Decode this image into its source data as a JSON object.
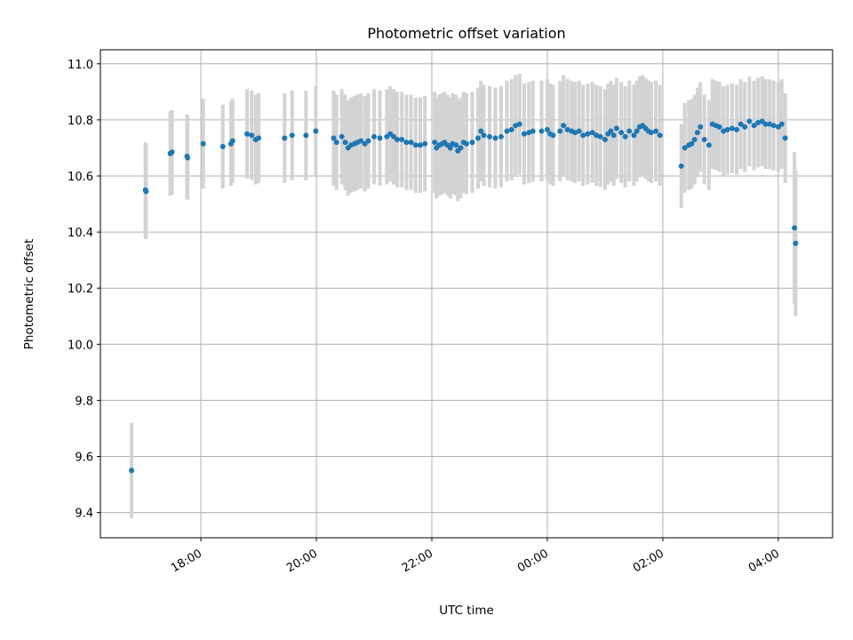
{
  "chart_data": {
    "type": "scatter",
    "title": "Photometric offset variation",
    "xlabel": "UTC time",
    "ylabel": "Photometric offset",
    "xlim_hours": [
      16.26,
      28.94
    ],
    "ylim": [
      9.31,
      11.05
    ],
    "grid": true,
    "x_tick_values_hours": [
      18,
      20,
      22,
      24,
      26,
      28
    ],
    "x_tick_labels": [
      "18:00",
      "20:00",
      "22:00",
      "00:00",
      "02:00",
      "04:00"
    ],
    "y_tick_values": [
      9.4,
      9.6,
      9.8,
      10.0,
      10.2,
      10.4,
      10.6,
      10.8,
      11.0
    ],
    "y_tick_labels": [
      "9.4",
      "9.6",
      "9.8",
      "10.0",
      "10.2",
      "10.4",
      "10.6",
      "10.8",
      "11.0"
    ],
    "colors": {
      "points": "#1f77b4",
      "errorbars": "#d3d3d3",
      "grid": "#b0b0b0"
    },
    "series": [
      {
        "name": "photometric offset",
        "x_hours": [
          16.8,
          17.04,
          17.05,
          17.47,
          17.5,
          17.76,
          17.77,
          18.04,
          18.38,
          18.52,
          18.55,
          18.8,
          18.88,
          18.95,
          19.0,
          19.45,
          19.58,
          19.82,
          19.99,
          20.3,
          20.35,
          20.44,
          20.5,
          20.55,
          20.6,
          20.66,
          20.71,
          20.77,
          20.84,
          20.9,
          21.0,
          21.1,
          21.22,
          21.28,
          21.34,
          21.4,
          21.48,
          21.56,
          21.64,
          21.72,
          21.8,
          21.88,
          22.05,
          22.08,
          22.13,
          22.18,
          22.22,
          22.27,
          22.32,
          22.36,
          22.42,
          22.45,
          22.5,
          22.55,
          22.6,
          22.7,
          22.8,
          22.85,
          22.9,
          23.0,
          23.1,
          23.2,
          23.3,
          23.38,
          23.45,
          23.52,
          23.6,
          23.68,
          23.75,
          23.9,
          24.0,
          24.05,
          24.1,
          24.22,
          24.28,
          24.35,
          24.42,
          24.48,
          24.55,
          24.62,
          24.7,
          24.78,
          24.85,
          24.92,
          25.0,
          25.05,
          25.1,
          25.15,
          25.2,
          25.28,
          25.35,
          25.42,
          25.5,
          25.55,
          25.6,
          25.65,
          25.7,
          25.75,
          25.8,
          25.88,
          25.95,
          26.32,
          26.38,
          26.45,
          26.5,
          26.55,
          26.6,
          26.65,
          26.72,
          26.8,
          26.86,
          26.92,
          26.98,
          27.05,
          27.12,
          27.2,
          27.28,
          27.35,
          27.42,
          27.5,
          27.58,
          27.65,
          27.72,
          27.78,
          27.85,
          27.92,
          28.0,
          28.06,
          28.12,
          28.28,
          28.3
        ],
        "y": [
          9.55,
          10.55,
          10.545,
          10.68,
          10.685,
          10.67,
          10.665,
          10.715,
          10.705,
          10.715,
          10.725,
          10.75,
          10.745,
          10.73,
          10.735,
          10.735,
          10.745,
          10.745,
          10.76,
          10.735,
          10.72,
          10.74,
          10.72,
          10.7,
          10.71,
          10.715,
          10.72,
          10.725,
          10.715,
          10.725,
          10.74,
          10.735,
          10.74,
          10.75,
          10.74,
          10.73,
          10.73,
          10.72,
          10.72,
          10.71,
          10.71,
          10.715,
          10.72,
          10.7,
          10.71,
          10.715,
          10.72,
          10.71,
          10.7,
          10.715,
          10.71,
          10.69,
          10.7,
          10.72,
          10.715,
          10.72,
          10.735,
          10.76,
          10.745,
          10.74,
          10.735,
          10.74,
          10.76,
          10.765,
          10.78,
          10.785,
          10.75,
          10.755,
          10.76,
          10.76,
          10.765,
          10.75,
          10.745,
          10.76,
          10.78,
          10.765,
          10.76,
          10.755,
          10.76,
          10.745,
          10.75,
          10.755,
          10.745,
          10.74,
          10.73,
          10.75,
          10.76,
          10.745,
          10.77,
          10.755,
          10.74,
          10.76,
          10.745,
          10.76,
          10.775,
          10.78,
          10.77,
          10.76,
          10.755,
          10.76,
          10.745,
          10.635,
          10.7,
          10.71,
          10.715,
          10.73,
          10.755,
          10.775,
          10.73,
          10.71,
          10.785,
          10.78,
          10.775,
          10.76,
          10.765,
          10.77,
          10.765,
          10.785,
          10.775,
          10.795,
          10.78,
          10.79,
          10.795,
          10.785,
          10.785,
          10.78,
          10.775,
          10.785,
          10.735,
          10.415,
          10.36
        ],
        "yerr": [
          0.17,
          0.17,
          0.17,
          0.15,
          0.15,
          0.15,
          0.15,
          0.16,
          0.15,
          0.15,
          0.15,
          0.16,
          0.16,
          0.16,
          0.16,
          0.16,
          0.16,
          0.16,
          0.16,
          0.17,
          0.17,
          0.17,
          0.17,
          0.17,
          0.17,
          0.17,
          0.17,
          0.17,
          0.17,
          0.17,
          0.17,
          0.17,
          0.17,
          0.17,
          0.17,
          0.17,
          0.17,
          0.17,
          0.17,
          0.17,
          0.17,
          0.17,
          0.18,
          0.18,
          0.18,
          0.18,
          0.18,
          0.18,
          0.18,
          0.18,
          0.18,
          0.18,
          0.18,
          0.18,
          0.18,
          0.18,
          0.18,
          0.18,
          0.18,
          0.18,
          0.18,
          0.18,
          0.18,
          0.18,
          0.18,
          0.18,
          0.18,
          0.18,
          0.18,
          0.18,
          0.18,
          0.18,
          0.18,
          0.18,
          0.18,
          0.18,
          0.18,
          0.18,
          0.18,
          0.18,
          0.18,
          0.18,
          0.18,
          0.18,
          0.18,
          0.18,
          0.18,
          0.18,
          0.18,
          0.18,
          0.18,
          0.18,
          0.18,
          0.18,
          0.18,
          0.18,
          0.18,
          0.18,
          0.18,
          0.18,
          0.18,
          0.15,
          0.16,
          0.16,
          0.16,
          0.16,
          0.16,
          0.16,
          0.16,
          0.16,
          0.16,
          0.16,
          0.16,
          0.16,
          0.16,
          0.16,
          0.16,
          0.16,
          0.16,
          0.16,
          0.16,
          0.16,
          0.16,
          0.16,
          0.16,
          0.16,
          0.16,
          0.16,
          0.16,
          0.27,
          0.26
        ]
      }
    ]
  }
}
